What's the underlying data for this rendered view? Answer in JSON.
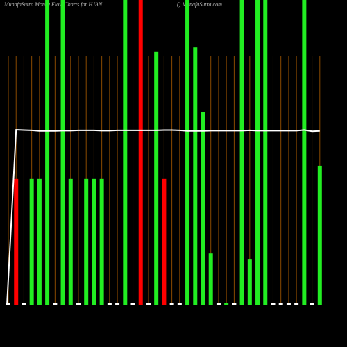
{
  "chart_data": {
    "type": "bar",
    "title": "MunafaSutra  Money Flow  Charts for HJAN",
    "subtitle": "() MunafaSutra.com",
    "categories": [
      null,
      null,
      null,
      null,
      null,
      null,
      null,
      null,
      null,
      null,
      null,
      null,
      null,
      null,
      null,
      null,
      null,
      null,
      null,
      null,
      null,
      null,
      null,
      null,
      null,
      null,
      null,
      null,
      null,
      null,
      null,
      null,
      null,
      null,
      null,
      null,
      null,
      null,
      null,
      null,
      null
    ],
    "values": [
      0.7,
      41.4,
      0.7,
      41.4,
      41.4,
      100,
      0.7,
      100,
      41.4,
      0.7,
      41.4,
      41.4,
      41.4,
      0.7,
      0.7,
      100,
      0.7,
      100,
      0.7,
      83,
      41.4,
      0.7,
      0.7,
      100,
      84.5,
      63.2,
      17,
      0.7,
      0.9,
      0.7,
      100,
      15.2,
      100,
      100,
      0.7,
      0.7,
      0.7,
      0.7,
      100,
      0.7,
      45.7
    ],
    "colors": [
      "#ffffff",
      "#ff0000",
      "#ffffff",
      "#22ee22",
      "#22ee22",
      "#22ee22",
      "#ffffff",
      "#22ee22",
      "#22ee22",
      "#ffffff",
      "#22ee22",
      "#22ee22",
      "#22ee22",
      "#ffffff",
      "#ffffff",
      "#22ee22",
      "#ffffff",
      "#ff0000",
      "#ffffff",
      "#22ee22",
      "#ff0000",
      "#ffffff",
      "#ffffff",
      "#22ee22",
      "#22ee22",
      "#22ee22",
      "#22ee22",
      "#ffffff",
      "#22ee22",
      "#ffffff",
      "#22ee22",
      "#22ee22",
      "#22ee22",
      "#22ee22",
      "#ffffff",
      "#ffffff",
      "#ffffff",
      "#ffffff",
      "#22ee22",
      "#ffffff",
      "#22ee22"
    ],
    "line": {
      "color": "#ffffff",
      "values": [
        0,
        57.5,
        57.4,
        57.3,
        57.1,
        57.1,
        57.1,
        57.2,
        57.2,
        57.3,
        57.3,
        57.3,
        57.2,
        57.2,
        57.3,
        57.3,
        57.3,
        57.3,
        57.3,
        57.3,
        57.4,
        57.4,
        57.3,
        57.1,
        57.1,
        57.1,
        57.2,
        57.2,
        57.2,
        57.2,
        57.2,
        57.3,
        57.2,
        57.2,
        57.2,
        57.2,
        57.2,
        57.2,
        57.4,
        57.0,
        57.1
      ]
    },
    "ylim": [
      0,
      100
    ],
    "grid": true,
    "grid_color": "#8a4a00"
  }
}
